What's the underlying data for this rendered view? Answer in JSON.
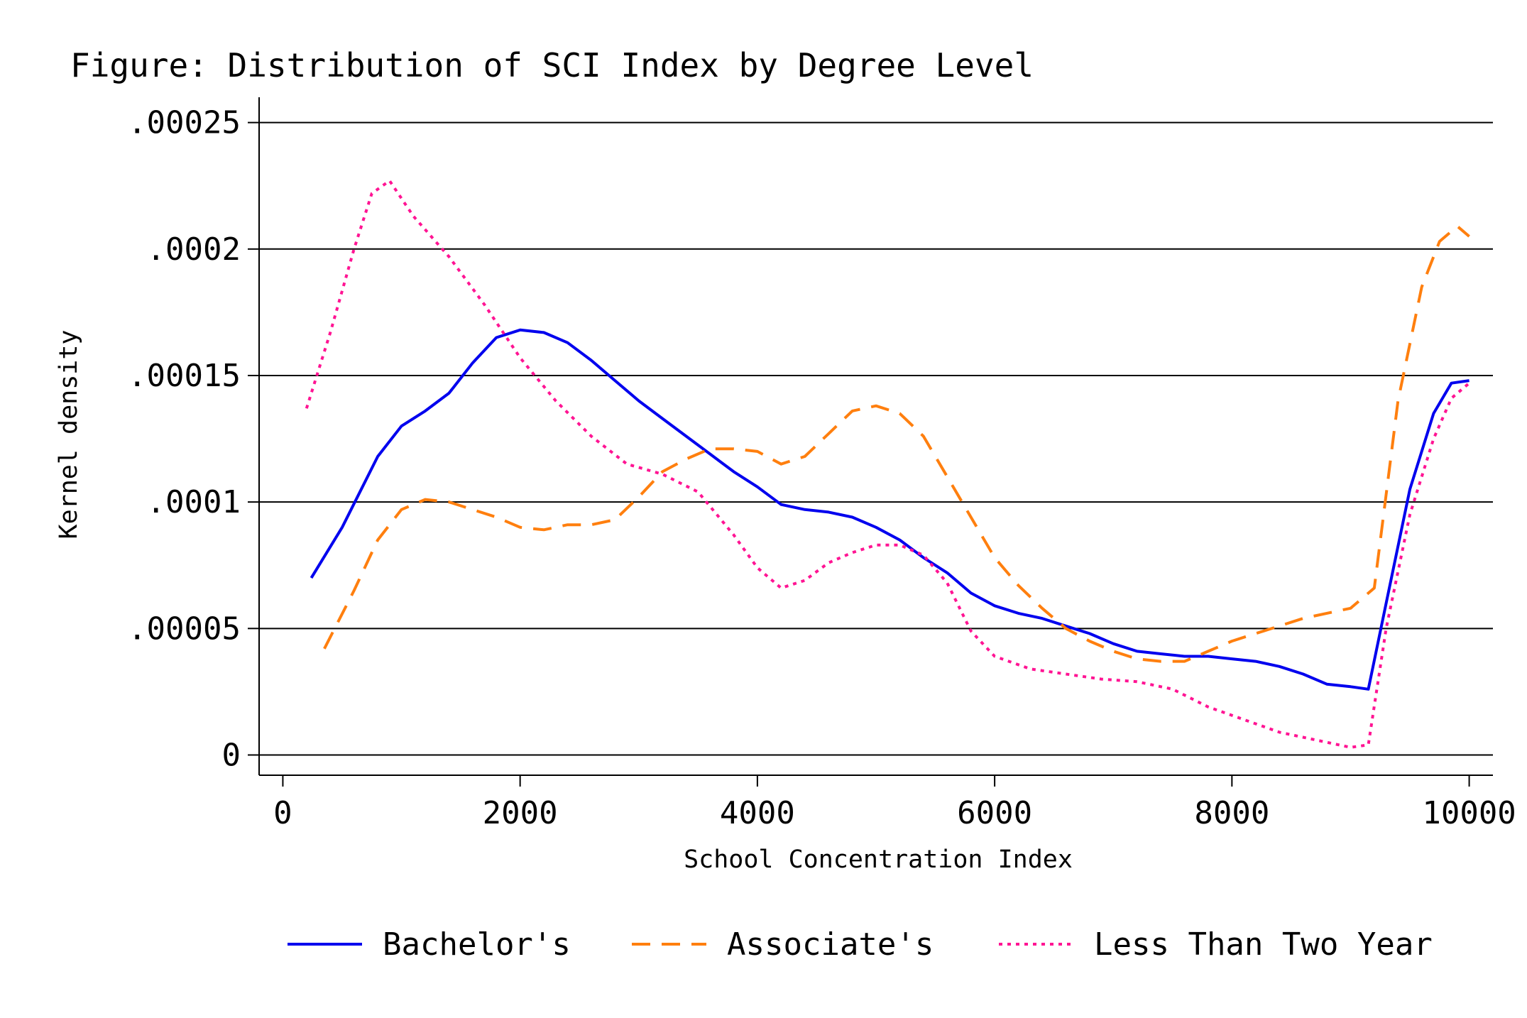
{
  "chart_data": {
    "type": "line",
    "title": "Figure: Distribution of SCI Index by Degree Level",
    "xlabel": "School Concentration Index",
    "ylabel": "Kernel density",
    "xlim": [
      -200,
      10200
    ],
    "ylim": [
      -8e-06,
      0.00026
    ],
    "x_ticks": [
      0,
      2000,
      4000,
      6000,
      8000,
      10000
    ],
    "x_tick_labels": [
      "0",
      "2000",
      "4000",
      "6000",
      "8000",
      "10000"
    ],
    "y_ticks": [
      0,
      5e-05,
      0.0001,
      0.00015,
      0.0002,
      0.00025
    ],
    "y_tick_labels": [
      "0",
      ".00005",
      ".0001",
      ".00015",
      ".0002",
      ".00025"
    ],
    "grid": "horizontal",
    "legend_position": "bottom",
    "series": [
      {
        "name": "Bachelor's",
        "color": "#0000ee",
        "dash": "solid",
        "points": [
          [
            240,
            7e-05
          ],
          [
            500,
            9e-05
          ],
          [
            800,
            0.000118
          ],
          [
            1000,
            0.00013
          ],
          [
            1200,
            0.000136
          ],
          [
            1400,
            0.000143
          ],
          [
            1600,
            0.000155
          ],
          [
            1800,
            0.000165
          ],
          [
            2000,
            0.000168
          ],
          [
            2200,
            0.000167
          ],
          [
            2400,
            0.000163
          ],
          [
            2600,
            0.000156
          ],
          [
            2800,
            0.000148
          ],
          [
            3000,
            0.00014
          ],
          [
            3200,
            0.000133
          ],
          [
            3400,
            0.000126
          ],
          [
            3600,
            0.000119
          ],
          [
            3800,
            0.000112
          ],
          [
            4000,
            0.000106
          ],
          [
            4200,
            9.9e-05
          ],
          [
            4400,
            9.7e-05
          ],
          [
            4600,
            9.6e-05
          ],
          [
            4800,
            9.4e-05
          ],
          [
            5000,
            9e-05
          ],
          [
            5200,
            8.5e-05
          ],
          [
            5400,
            7.8e-05
          ],
          [
            5600,
            7.2e-05
          ],
          [
            5800,
            6.4e-05
          ],
          [
            6000,
            5.9e-05
          ],
          [
            6200,
            5.6e-05
          ],
          [
            6400,
            5.4e-05
          ],
          [
            6600,
            5.1e-05
          ],
          [
            6800,
            4.8e-05
          ],
          [
            7000,
            4.4e-05
          ],
          [
            7200,
            4.1e-05
          ],
          [
            7400,
            4e-05
          ],
          [
            7600,
            3.9e-05
          ],
          [
            7800,
            3.9e-05
          ],
          [
            8000,
            3.8e-05
          ],
          [
            8200,
            3.7e-05
          ],
          [
            8400,
            3.5e-05
          ],
          [
            8600,
            3.2e-05
          ],
          [
            8800,
            2.8e-05
          ],
          [
            9000,
            2.7e-05
          ],
          [
            9150,
            2.6e-05
          ],
          [
            9300,
            6e-05
          ],
          [
            9500,
            0.000105
          ],
          [
            9700,
            0.000135
          ],
          [
            9850,
            0.000147
          ],
          [
            10000,
            0.000148
          ]
        ]
      },
      {
        "name": "Associate's",
        "color": "#ff7f0e",
        "dash": "dashed",
        "points": [
          [
            350,
            4.2e-05
          ],
          [
            600,
            6.5e-05
          ],
          [
            800,
            8.5e-05
          ],
          [
            1000,
            9.7e-05
          ],
          [
            1200,
            0.000101
          ],
          [
            1400,
            0.0001
          ],
          [
            1600,
            9.7e-05
          ],
          [
            1800,
            9.4e-05
          ],
          [
            2000,
            9e-05
          ],
          [
            2200,
            8.9e-05
          ],
          [
            2400,
            9.1e-05
          ],
          [
            2600,
            9.1e-05
          ],
          [
            2800,
            9.3e-05
          ],
          [
            3000,
            0.000102
          ],
          [
            3200,
            0.000112
          ],
          [
            3400,
            0.000117
          ],
          [
            3600,
            0.000121
          ],
          [
            3800,
            0.000121
          ],
          [
            4000,
            0.00012
          ],
          [
            4200,
            0.000115
          ],
          [
            4400,
            0.000118
          ],
          [
            4600,
            0.000127
          ],
          [
            4800,
            0.000136
          ],
          [
            5000,
            0.000138
          ],
          [
            5200,
            0.000135
          ],
          [
            5400,
            0.000126
          ],
          [
            5600,
            0.00011
          ],
          [
            5800,
            9.4e-05
          ],
          [
            6000,
            7.8e-05
          ],
          [
            6200,
            6.7e-05
          ],
          [
            6400,
            5.8e-05
          ],
          [
            6600,
            5e-05
          ],
          [
            6800,
            4.5e-05
          ],
          [
            7000,
            4.1e-05
          ],
          [
            7200,
            3.8e-05
          ],
          [
            7400,
            3.7e-05
          ],
          [
            7600,
            3.7e-05
          ],
          [
            7800,
            4.1e-05
          ],
          [
            8000,
            4.5e-05
          ],
          [
            8200,
            4.8e-05
          ],
          [
            8400,
            5.1e-05
          ],
          [
            8600,
            5.4e-05
          ],
          [
            8800,
            5.6e-05
          ],
          [
            9000,
            5.8e-05
          ],
          [
            9200,
            6.6e-05
          ],
          [
            9400,
            0.00014
          ],
          [
            9600,
            0.000185
          ],
          [
            9750,
            0.000203
          ],
          [
            9900,
            0.000209
          ],
          [
            10000,
            0.000205
          ]
        ]
      },
      {
        "name": "Less Than Two Year",
        "color": "#ff1493",
        "dash": "dotted",
        "points": [
          [
            200,
            0.000137
          ],
          [
            400,
            0.000167
          ],
          [
            600,
            0.0002
          ],
          [
            750,
            0.000222
          ],
          [
            900,
            0.000227
          ],
          [
            1100,
            0.000213
          ],
          [
            1400,
            0.000197
          ],
          [
            1700,
            0.000178
          ],
          [
            2000,
            0.000157
          ],
          [
            2300,
            0.00014
          ],
          [
            2600,
            0.000126
          ],
          [
            2900,
            0.000115
          ],
          [
            3200,
            0.000111
          ],
          [
            3500,
            0.000104
          ],
          [
            3800,
            8.7e-05
          ],
          [
            4000,
            7.4e-05
          ],
          [
            4200,
            6.6e-05
          ],
          [
            4400,
            6.9e-05
          ],
          [
            4600,
            7.6e-05
          ],
          [
            4800,
            8e-05
          ],
          [
            5000,
            8.3e-05
          ],
          [
            5200,
            8.3e-05
          ],
          [
            5400,
            7.9e-05
          ],
          [
            5600,
            6.8e-05
          ],
          [
            5800,
            4.9e-05
          ],
          [
            6000,
            3.9e-05
          ],
          [
            6300,
            3.4e-05
          ],
          [
            6600,
            3.2e-05
          ],
          [
            6900,
            3e-05
          ],
          [
            7200,
            2.9e-05
          ],
          [
            7500,
            2.6e-05
          ],
          [
            7800,
            1.9e-05
          ],
          [
            8100,
            1.4e-05
          ],
          [
            8400,
            9e-06
          ],
          [
            8700,
            6e-06
          ],
          [
            9000,
            3e-06
          ],
          [
            9150,
            4e-06
          ],
          [
            9300,
            5e-05
          ],
          [
            9500,
            9.5e-05
          ],
          [
            9700,
            0.000125
          ],
          [
            9850,
            0.000141
          ],
          [
            10000,
            0.000147
          ]
        ]
      }
    ]
  }
}
